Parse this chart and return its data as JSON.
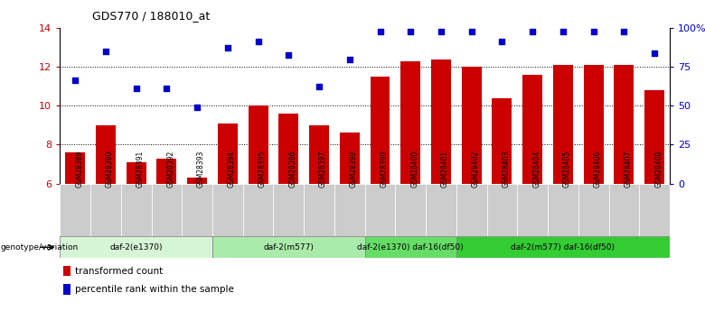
{
  "title": "GDS770 / 188010_at",
  "samples": [
    "GSM28389",
    "GSM28390",
    "GSM28391",
    "GSM28392",
    "GSM28393",
    "GSM28394",
    "GSM28395",
    "GSM28396",
    "GSM28397",
    "GSM28398",
    "GSM28399",
    "GSM28400",
    "GSM28401",
    "GSM28402",
    "GSM28403",
    "GSM28404",
    "GSM28405",
    "GSM28406",
    "GSM28407",
    "GSM28408"
  ],
  "bar_values": [
    7.6,
    9.0,
    7.1,
    7.3,
    6.3,
    9.1,
    10.0,
    9.6,
    9.0,
    8.6,
    11.5,
    12.3,
    12.4,
    12.0,
    10.4,
    11.6,
    12.1,
    12.1,
    12.1,
    10.8
  ],
  "dot_values": [
    11.3,
    12.8,
    10.9,
    10.9,
    9.9,
    13.0,
    13.3,
    12.6,
    11.0,
    12.4,
    13.8,
    13.8,
    13.8,
    13.8,
    13.3,
    13.8,
    13.8,
    13.8,
    13.8,
    12.7
  ],
  "ylim": [
    6,
    14
  ],
  "yticks_left": [
    6,
    8,
    10,
    12,
    14
  ],
  "yticks_right_labels": [
    "0",
    "25",
    "50",
    "75",
    "100%"
  ],
  "yticks_right_pos": [
    6,
    8,
    10,
    12,
    14
  ],
  "bar_color": "#cc0000",
  "dot_color": "#0000cc",
  "groups": [
    {
      "label": "daf-2(e1370)",
      "start": 0,
      "end": 5,
      "color": "#d6f5d6"
    },
    {
      "label": "daf-2(m577)",
      "start": 5,
      "end": 10,
      "color": "#aaeaaa"
    },
    {
      "label": "daf-2(e1370) daf-16(df50)",
      "start": 10,
      "end": 13,
      "color": "#66dd66"
    },
    {
      "label": "daf-2(m577) daf-16(df50)",
      "start": 13,
      "end": 20,
      "color": "#33cc33"
    }
  ],
  "genotype_label": "genotype/variation",
  "legend_bar_label": "transformed count",
  "legend_dot_label": "percentile rank within the sample",
  "bar_color_legend": "#cc0000",
  "dot_color_legend": "#0000cc",
  "tick_label_color_left": "#cc0000",
  "tick_label_color_right": "#0000cc",
  "xlabel_gray": "#cccccc",
  "grid_yticks": [
    8,
    10,
    12
  ]
}
